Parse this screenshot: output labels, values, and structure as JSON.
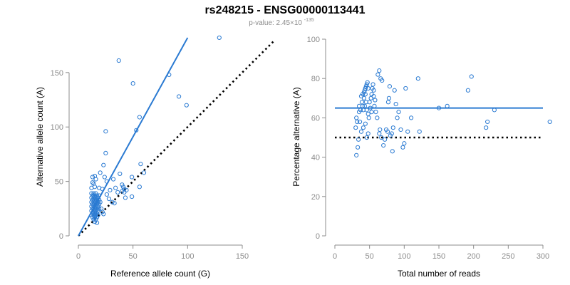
{
  "title": "rs248215 - ENSG00000113441",
  "subtitle": {
    "prefix": "p-value: 2.45×10",
    "exponent": "-135"
  },
  "colors": {
    "points": "#2a7ad2",
    "fit_line": "#2a7ad2",
    "reference_line": "#000000",
    "axes": "#8c8c8c"
  },
  "chart_data": [
    {
      "type": "scatter",
      "title": "",
      "xlabel": "Reference allele count (G)",
      "ylabel": "Alternative allele count (A)",
      "xlim": [
        0,
        150
      ],
      "ylim": [
        0,
        180
      ],
      "xticks": [
        0,
        50,
        100,
        150
      ],
      "yticks": [
        0,
        50,
        100,
        150
      ],
      "grid": false,
      "fit_line": {
        "style": "solid",
        "from": [
          0,
          0
        ],
        "to": [
          100,
          182
        ]
      },
      "reference_line": {
        "style": "dotted",
        "from": [
          0,
          0
        ],
        "to": [
          180,
          180
        ]
      },
      "points": [
        [
          37,
          161
        ],
        [
          50,
          140
        ],
        [
          129,
          182
        ],
        [
          83,
          148
        ],
        [
          92,
          128
        ],
        [
          99,
          120
        ],
        [
          56,
          109
        ],
        [
          53,
          97
        ],
        [
          25,
          96
        ],
        [
          25,
          76
        ],
        [
          57,
          66
        ],
        [
          60,
          58
        ],
        [
          23,
          65
        ],
        [
          15,
          55
        ],
        [
          13,
          54
        ],
        [
          16,
          52
        ],
        [
          20,
          58
        ],
        [
          24,
          54
        ],
        [
          26,
          50
        ],
        [
          38,
          57
        ],
        [
          32,
          52
        ],
        [
          49,
          54
        ],
        [
          56,
          45
        ],
        [
          49,
          36
        ],
        [
          43,
          35
        ],
        [
          13,
          49
        ],
        [
          14,
          48
        ],
        [
          15,
          45
        ],
        [
          12,
          44
        ],
        [
          19,
          44
        ],
        [
          22,
          43
        ],
        [
          40,
          47
        ],
        [
          41,
          45
        ],
        [
          42,
          43
        ],
        [
          40,
          41
        ],
        [
          36,
          40
        ],
        [
          42,
          40
        ],
        [
          12,
          39
        ],
        [
          14,
          39
        ],
        [
          16,
          39
        ],
        [
          13,
          37
        ],
        [
          15,
          37
        ],
        [
          17,
          37
        ],
        [
          19,
          37
        ],
        [
          12,
          35
        ],
        [
          14,
          35
        ],
        [
          16,
          35
        ],
        [
          18,
          35
        ],
        [
          13,
          33
        ],
        [
          15,
          33
        ],
        [
          17,
          33
        ],
        [
          19,
          33
        ],
        [
          12,
          31
        ],
        [
          14,
          31
        ],
        [
          16,
          31
        ],
        [
          18,
          31
        ],
        [
          20,
          31
        ],
        [
          13,
          29
        ],
        [
          15,
          29
        ],
        [
          17,
          29
        ],
        [
          19,
          29
        ],
        [
          12,
          27
        ],
        [
          14,
          27
        ],
        [
          16,
          27
        ],
        [
          18,
          27
        ],
        [
          13,
          25
        ],
        [
          15,
          25
        ],
        [
          17,
          25
        ],
        [
          19,
          25
        ],
        [
          21,
          25
        ],
        [
          12,
          23
        ],
        [
          14,
          23
        ],
        [
          16,
          23
        ],
        [
          18,
          23
        ],
        [
          13,
          21
        ],
        [
          15,
          21
        ],
        [
          17,
          21
        ],
        [
          12,
          19
        ],
        [
          14,
          19
        ],
        [
          16,
          19
        ],
        [
          18,
          19
        ],
        [
          13,
          17
        ],
        [
          15,
          17
        ],
        [
          17,
          17
        ],
        [
          14,
          15
        ],
        [
          16,
          15
        ],
        [
          15,
          13
        ],
        [
          17,
          12
        ],
        [
          22,
          22
        ],
        [
          23,
          20
        ],
        [
          28,
          34
        ],
        [
          31,
          31
        ],
        [
          33,
          30
        ],
        [
          26,
          38
        ],
        [
          29,
          42
        ],
        [
          34,
          44
        ],
        [
          44,
          42
        ]
      ]
    },
    {
      "type": "scatter",
      "title": "",
      "xlabel": "Total number of reads",
      "ylabel": "Percentage alternative (A)",
      "xlim": [
        0,
        300
      ],
      "ylim": [
        0,
        100
      ],
      "xticks": [
        0,
        50,
        100,
        150,
        200,
        250,
        300
      ],
      "yticks": [
        0,
        20,
        40,
        60,
        80,
        100
      ],
      "grid": false,
      "fit_line": {
        "style": "solid",
        "y": 65,
        "x_from": 0,
        "x_to": 300
      },
      "reference_line": {
        "style": "dotted",
        "y": 50,
        "x_from": 0,
        "x_to": 300
      },
      "points": [
        [
          31,
          41
        ],
        [
          33,
          45
        ],
        [
          34,
          49
        ],
        [
          30,
          55
        ],
        [
          32,
          58
        ],
        [
          31,
          60
        ],
        [
          35,
          63
        ],
        [
          38,
          71
        ],
        [
          40,
          72
        ],
        [
          42,
          73
        ],
        [
          43,
          74
        ],
        [
          44,
          75
        ],
        [
          45,
          76
        ],
        [
          46,
          77
        ],
        [
          47,
          78
        ],
        [
          48,
          75
        ],
        [
          44,
          72
        ],
        [
          42,
          70
        ],
        [
          40,
          66
        ],
        [
          39,
          68
        ],
        [
          41,
          64
        ],
        [
          43,
          66
        ],
        [
          45,
          68
        ],
        [
          46,
          64
        ],
        [
          48,
          62
        ],
        [
          49,
          60
        ],
        [
          44,
          57
        ],
        [
          41,
          55
        ],
        [
          38,
          53
        ],
        [
          36,
          58
        ],
        [
          35,
          66
        ],
        [
          37,
          64
        ],
        [
          46,
          50
        ],
        [
          48,
          52
        ],
        [
          50,
          68
        ],
        [
          52,
          70
        ],
        [
          53,
          72
        ],
        [
          54,
          75
        ],
        [
          55,
          77
        ],
        [
          56,
          71
        ],
        [
          57,
          66
        ],
        [
          59,
          63
        ],
        [
          51,
          65
        ],
        [
          53,
          63
        ],
        [
          56,
          74
        ],
        [
          58,
          69
        ],
        [
          61,
          60
        ],
        [
          62,
          82
        ],
        [
          64,
          84
        ],
        [
          66,
          80
        ],
        [
          68,
          79
        ],
        [
          64,
          52
        ],
        [
          65,
          54
        ],
        [
          67,
          50
        ],
        [
          70,
          46
        ],
        [
          72,
          49
        ],
        [
          74,
          54
        ],
        [
          76,
          53
        ],
        [
          77,
          68
        ],
        [
          78,
          70
        ],
        [
          79,
          76
        ],
        [
          80,
          51
        ],
        [
          82,
          52
        ],
        [
          83,
          43
        ],
        [
          84,
          55
        ],
        [
          86,
          74
        ],
        [
          88,
          67
        ],
        [
          90,
          60
        ],
        [
          92,
          63
        ],
        [
          95,
          54
        ],
        [
          98,
          45
        ],
        [
          100,
          47
        ],
        [
          102,
          75
        ],
        [
          105,
          53
        ],
        [
          110,
          60
        ],
        [
          120,
          80
        ],
        [
          122,
          53
        ],
        [
          150,
          65
        ],
        [
          162,
          66
        ],
        [
          192,
          74
        ],
        [
          197,
          81
        ],
        [
          218,
          55
        ],
        [
          220,
          58
        ],
        [
          230,
          64
        ],
        [
          310,
          58
        ]
      ]
    }
  ]
}
